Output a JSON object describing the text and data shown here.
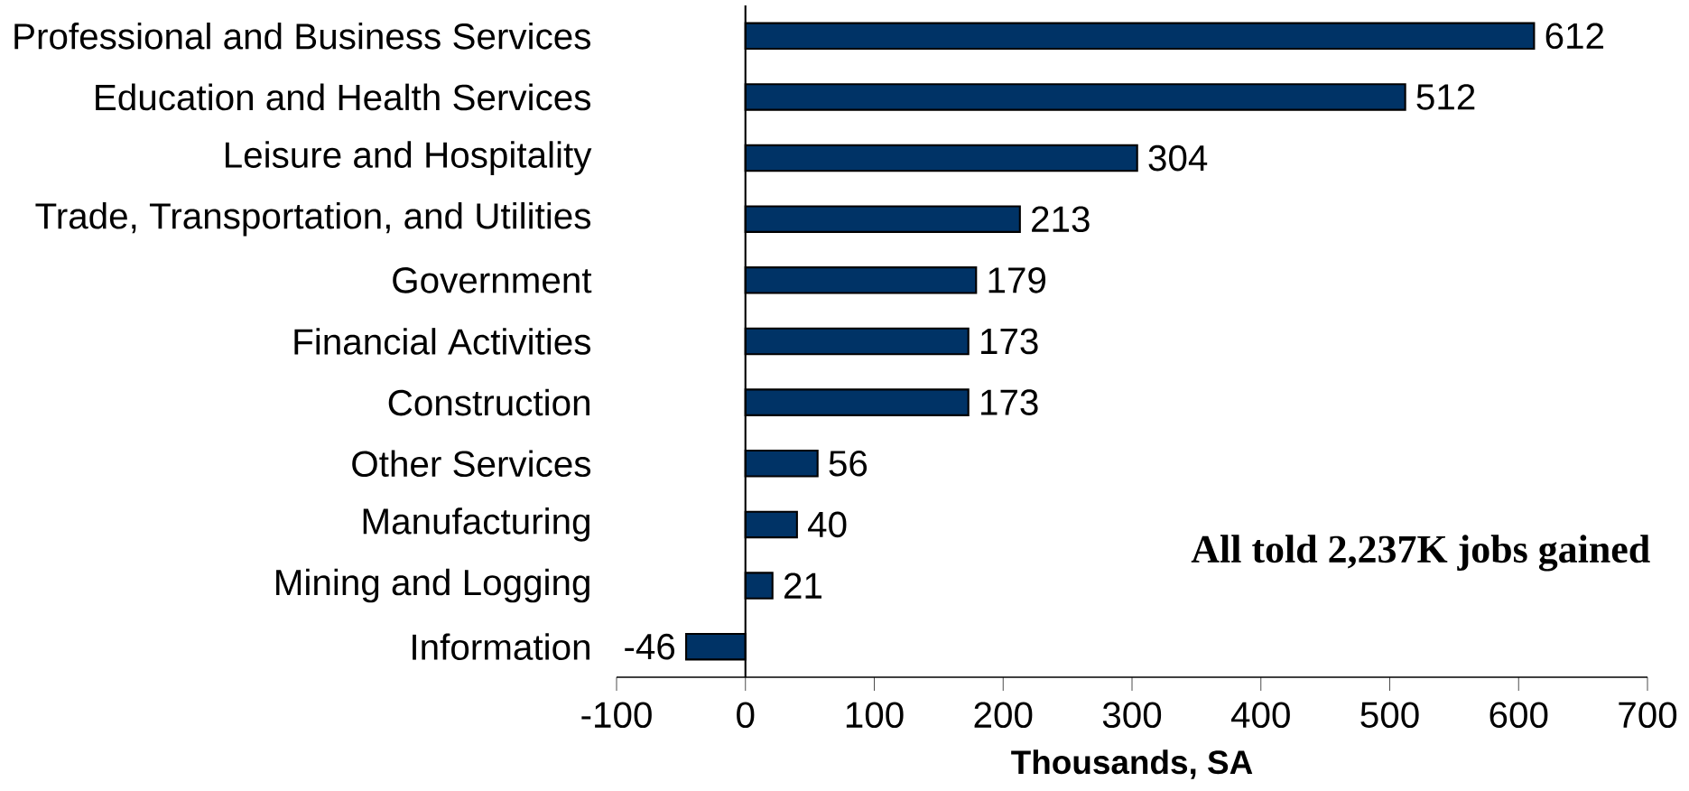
{
  "chart_data": {
    "type": "bar",
    "orientation": "horizontal",
    "categories": [
      "Professional and Business Services",
      "Education and Health Services",
      "Leisure and Hospitality",
      "Trade, Transportation, and Utilities",
      "Government",
      "Financial Activities",
      "Construction",
      "Other Services",
      "Manufacturing",
      "Mining and Logging",
      "Information"
    ],
    "values": [
      612,
      512,
      304,
      213,
      179,
      173,
      173,
      56,
      40,
      21,
      -46
    ],
    "color": "#003366",
    "data_labels": true,
    "xlim": [
      -100,
      700
    ],
    "xticks": [
      -100,
      0,
      100,
      200,
      300,
      400,
      500,
      600,
      700
    ],
    "xlabel": "Thousands, SA",
    "annotations": [
      "All told 2,237K jobs gained"
    ]
  }
}
